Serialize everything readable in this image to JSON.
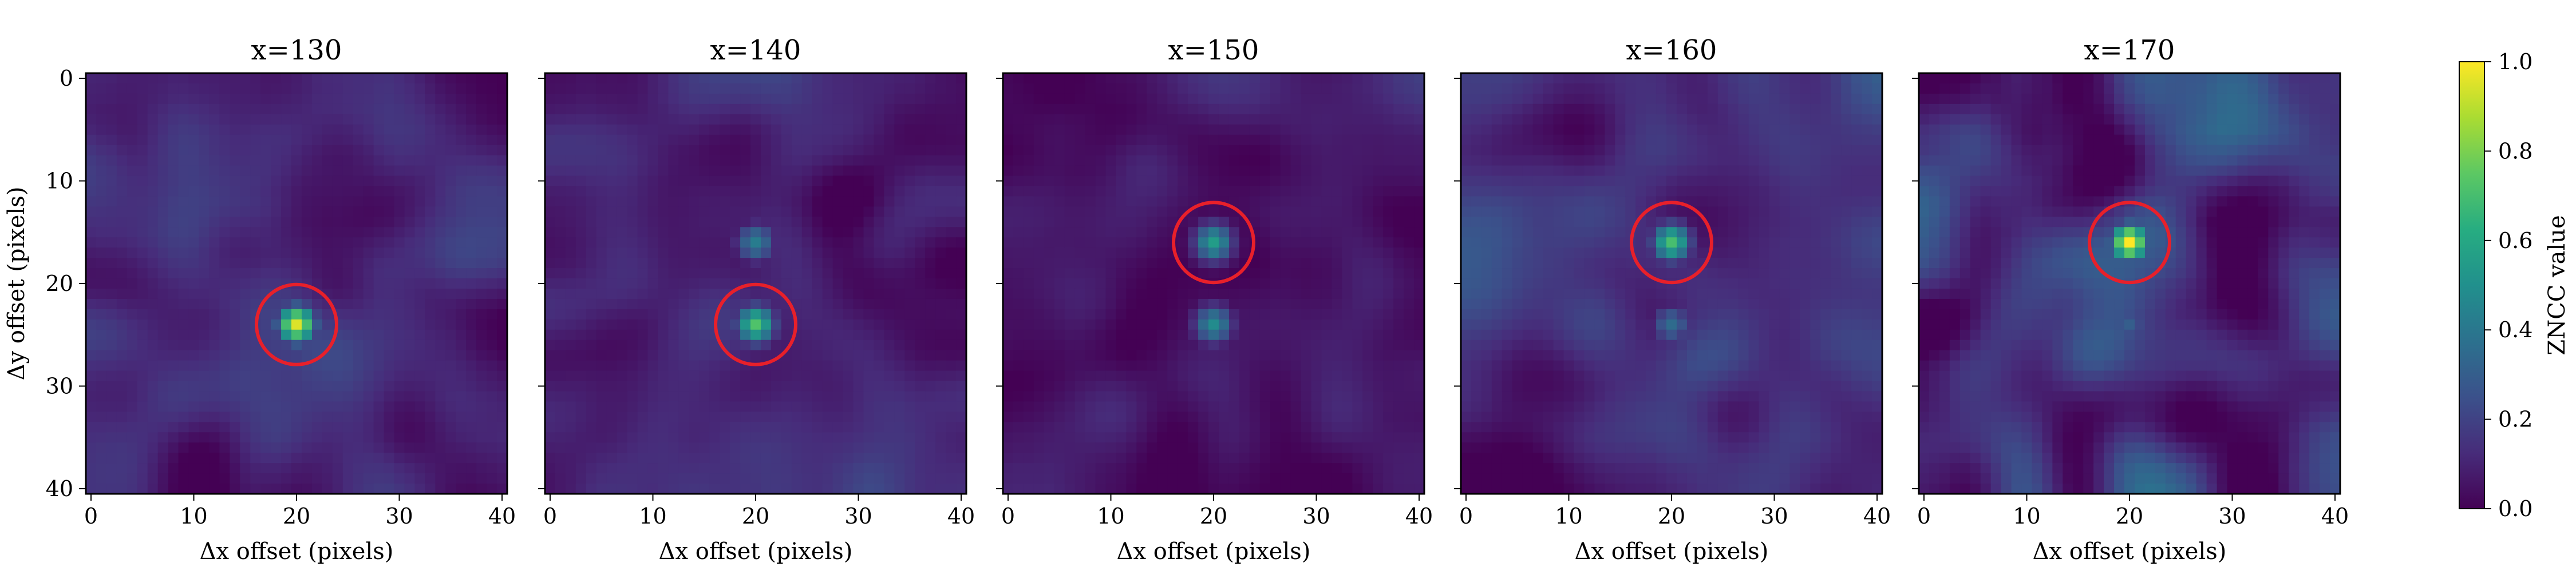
{
  "chart_data": [
    {
      "type": "heatmap",
      "title": "x=130",
      "xlabel": "Δx offset (pixels)",
      "ylabel": "Δy offset (pixels)",
      "xlim": [
        0,
        40
      ],
      "ylim": [
        40,
        0
      ],
      "xticks": [
        "0",
        "10",
        "20",
        "30",
        "40"
      ],
      "yticks": [
        "0",
        "10",
        "20",
        "30",
        "40"
      ],
      "colormap": "viridis",
      "peaks": [
        {
          "x": 20,
          "y": 24,
          "value": 0.95
        }
      ],
      "marker": {
        "x": 20,
        "y": 24,
        "color": "#e8202a"
      },
      "background_level": 0.12
    },
    {
      "type": "heatmap",
      "title": "x=140",
      "xlabel": "Δx offset (pixels)",
      "ylabel": "",
      "xlim": [
        0,
        40
      ],
      "ylim": [
        40,
        0
      ],
      "xticks": [
        "0",
        "10",
        "20",
        "30",
        "40"
      ],
      "yticks": [],
      "colormap": "viridis",
      "peaks": [
        {
          "x": 20,
          "y": 24,
          "value": 0.72
        },
        {
          "x": 20,
          "y": 16,
          "value": 0.42
        }
      ],
      "marker": {
        "x": 20,
        "y": 24,
        "color": "#e8202a"
      },
      "background_level": 0.12
    },
    {
      "type": "heatmap",
      "title": "x=150",
      "xlabel": "Δx offset (pixels)",
      "ylabel": "",
      "xlim": [
        0,
        40
      ],
      "ylim": [
        40,
        0
      ],
      "xticks": [
        "0",
        "10",
        "20",
        "30",
        "40"
      ],
      "yticks": [],
      "colormap": "viridis",
      "peaks": [
        {
          "x": 20,
          "y": 16,
          "value": 0.55
        },
        {
          "x": 20,
          "y": 24,
          "value": 0.48
        }
      ],
      "marker": {
        "x": 20,
        "y": 16,
        "color": "#e8202a"
      },
      "background_level": 0.1
    },
    {
      "type": "heatmap",
      "title": "x=160",
      "xlabel": "Δx offset (pixels)",
      "ylabel": "",
      "xlim": [
        0,
        40
      ],
      "ylim": [
        40,
        0
      ],
      "xticks": [
        "0",
        "10",
        "20",
        "30",
        "40"
      ],
      "yticks": [],
      "colormap": "viridis",
      "peaks": [
        {
          "x": 20,
          "y": 16,
          "value": 0.7
        },
        {
          "x": 20,
          "y": 24,
          "value": 0.35
        }
      ],
      "marker": {
        "x": 20,
        "y": 16,
        "color": "#e8202a"
      },
      "background_level": 0.16
    },
    {
      "type": "heatmap",
      "title": "x=170",
      "xlabel": "Δx offset (pixels)",
      "ylabel": "",
      "xlim": [
        0,
        40
      ],
      "ylim": [
        40,
        0
      ],
      "xticks": [
        "0",
        "10",
        "20",
        "30",
        "40"
      ],
      "yticks": [],
      "colormap": "viridis",
      "peaks": [
        {
          "x": 20,
          "y": 16,
          "value": 1.0
        },
        {
          "x": 20,
          "y": 24,
          "value": 0.3
        }
      ],
      "marker": {
        "x": 20,
        "y": 16,
        "color": "#e8202a"
      },
      "background_level": 0.2
    }
  ],
  "colorbar": {
    "label": "ZNCC value",
    "range": [
      0.0,
      1.0
    ],
    "ticks": [
      "0.0",
      "0.2",
      "0.4",
      "0.6",
      "0.8",
      "1.0"
    ],
    "colormap": "viridis"
  }
}
